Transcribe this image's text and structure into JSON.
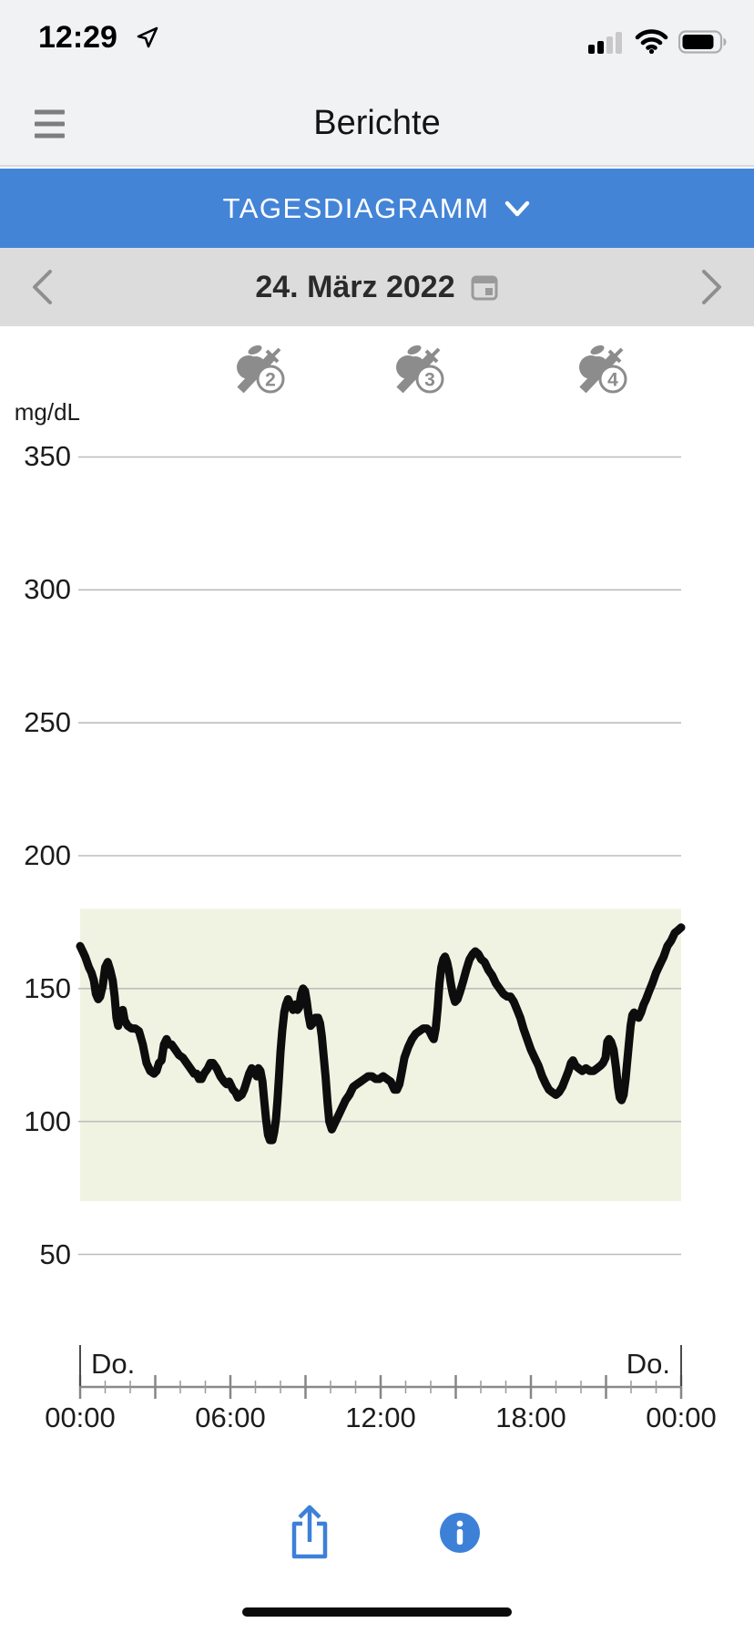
{
  "status_bar": {
    "time": "12:29",
    "signal_bars_filled": 2,
    "signal_bars_total": 4,
    "battery_fill": 0.78
  },
  "header": {
    "title": "Berichte"
  },
  "selector": {
    "label": "TAGESDIAGRAMM"
  },
  "date_bar": {
    "date": "24. März 2022"
  },
  "colors": {
    "accent_blue": "#4384d7",
    "action_blue": "#3d80d8",
    "icon_gray": "#8c8c8c",
    "band_green": "#f1f3e2",
    "curve_black": "#0d0d0d"
  },
  "chart_data": {
    "type": "line",
    "title": "",
    "xlabel": "",
    "ylabel": "mg/dL",
    "unit_label": "mg/dL",
    "grid": true,
    "ylim": [
      40,
      380
    ],
    "yticks": [
      350,
      300,
      250,
      200,
      150,
      100,
      50
    ],
    "xlim_hours": [
      0,
      24
    ],
    "major_tick_every_hours": 3,
    "minor_tick_every_hours": 1,
    "xticks": [
      {
        "hour": 0,
        "label": "00:00"
      },
      {
        "hour": 6,
        "label": "06:00"
      },
      {
        "hour": 12,
        "label": "12:00"
      },
      {
        "hour": 18,
        "label": "18:00"
      },
      {
        "hour": 24,
        "label": "00:00"
      }
    ],
    "day_labels": [
      {
        "hour": 0,
        "label": "Do.",
        "align": "left"
      },
      {
        "hour": 24,
        "label": "Do.",
        "align": "right"
      }
    ],
    "target_range": {
      "low": 70,
      "high": 180,
      "band_color": "#f1f3e2"
    },
    "events": [
      {
        "label": "2",
        "hour": 7.05
      },
      {
        "label": "3",
        "hour": 13.4
      },
      {
        "label": "4",
        "hour": 20.73
      }
    ],
    "series": [
      {
        "name": "glucose",
        "color": "#0d0d0d",
        "points": [
          [
            0,
            166
          ],
          [
            0.1,
            164
          ],
          [
            0.2,
            162
          ],
          [
            0.35,
            158
          ],
          [
            0.45,
            156
          ],
          [
            0.55,
            153
          ],
          [
            0.63,
            148
          ],
          [
            0.72,
            146
          ],
          [
            0.8,
            147
          ],
          [
            0.9,
            151
          ],
          [
            1.0,
            158
          ],
          [
            1.1,
            160
          ],
          [
            1.2,
            157
          ],
          [
            1.3,
            153
          ],
          [
            1.38,
            147
          ],
          [
            1.45,
            139
          ],
          [
            1.52,
            136
          ],
          [
            1.6,
            141
          ],
          [
            1.7,
            142
          ],
          [
            1.78,
            138
          ],
          [
            1.9,
            136
          ],
          [
            2.05,
            135
          ],
          [
            2.2,
            135
          ],
          [
            2.35,
            134
          ],
          [
            2.5,
            129
          ],
          [
            2.65,
            122
          ],
          [
            2.8,
            119
          ],
          [
            2.95,
            118
          ],
          [
            3.05,
            119
          ],
          [
            3.15,
            122
          ],
          [
            3.25,
            123
          ],
          [
            3.35,
            129
          ],
          [
            3.45,
            131
          ],
          [
            3.55,
            129
          ],
          [
            3.65,
            129
          ],
          [
            3.8,
            127
          ],
          [
            3.95,
            125
          ],
          [
            4.1,
            124
          ],
          [
            4.25,
            122
          ],
          [
            4.4,
            120
          ],
          [
            4.55,
            118
          ],
          [
            4.65,
            118
          ],
          [
            4.75,
            116
          ],
          [
            4.85,
            116
          ],
          [
            4.95,
            118
          ],
          [
            5.1,
            120
          ],
          [
            5.2,
            122
          ],
          [
            5.3,
            122
          ],
          [
            5.45,
            120
          ],
          [
            5.6,
            117
          ],
          [
            5.75,
            115
          ],
          [
            5.85,
            114
          ],
          [
            5.95,
            115
          ],
          [
            6.1,
            112
          ],
          [
            6.2,
            111
          ],
          [
            6.3,
            109
          ],
          [
            6.45,
            110
          ],
          [
            6.55,
            112
          ],
          [
            6.65,
            115
          ],
          [
            6.75,
            118
          ],
          [
            6.85,
            120
          ],
          [
            6.95,
            119
          ],
          [
            7.05,
            117
          ],
          [
            7.12,
            120
          ],
          [
            7.2,
            119
          ],
          [
            7.28,
            115
          ],
          [
            7.35,
            108
          ],
          [
            7.42,
            101
          ],
          [
            7.5,
            95
          ],
          [
            7.58,
            93
          ],
          [
            7.68,
            93
          ],
          [
            7.75,
            96
          ],
          [
            7.82,
            101
          ],
          [
            7.88,
            108
          ],
          [
            7.94,
            117
          ],
          [
            8.0,
            126
          ],
          [
            8.07,
            134
          ],
          [
            8.15,
            141
          ],
          [
            8.22,
            144
          ],
          [
            8.3,
            146
          ],
          [
            8.4,
            144
          ],
          [
            8.5,
            142
          ],
          [
            8.6,
            144
          ],
          [
            8.68,
            142
          ],
          [
            8.75,
            143
          ],
          [
            8.82,
            148
          ],
          [
            8.9,
            150
          ],
          [
            8.98,
            149
          ],
          [
            9.05,
            145
          ],
          [
            9.12,
            140
          ],
          [
            9.2,
            136
          ],
          [
            9.3,
            137
          ],
          [
            9.4,
            139
          ],
          [
            9.5,
            139
          ],
          [
            9.58,
            137
          ],
          [
            9.65,
            132
          ],
          [
            9.72,
            125
          ],
          [
            9.8,
            117
          ],
          [
            9.88,
            107
          ],
          [
            9.95,
            100
          ],
          [
            10.05,
            97
          ],
          [
            10.15,
            99
          ],
          [
            10.3,
            102
          ],
          [
            10.45,
            105
          ],
          [
            10.6,
            108
          ],
          [
            10.75,
            110
          ],
          [
            10.9,
            113
          ],
          [
            11.05,
            114
          ],
          [
            11.2,
            115
          ],
          [
            11.35,
            116
          ],
          [
            11.5,
            117
          ],
          [
            11.65,
            117
          ],
          [
            11.8,
            116
          ],
          [
            11.95,
            116
          ],
          [
            12.1,
            117
          ],
          [
            12.25,
            116
          ],
          [
            12.4,
            115
          ],
          [
            12.55,
            112
          ],
          [
            12.65,
            112
          ],
          [
            12.75,
            114
          ],
          [
            12.85,
            119
          ],
          [
            12.95,
            124
          ],
          [
            13.1,
            128
          ],
          [
            13.25,
            131
          ],
          [
            13.4,
            133
          ],
          [
            13.55,
            134
          ],
          [
            13.7,
            135
          ],
          [
            13.85,
            135
          ],
          [
            13.95,
            134
          ],
          [
            14.05,
            132
          ],
          [
            14.12,
            131
          ],
          [
            14.2,
            135
          ],
          [
            14.28,
            143
          ],
          [
            14.35,
            152
          ],
          [
            14.42,
            158
          ],
          [
            14.5,
            161
          ],
          [
            14.57,
            162
          ],
          [
            14.65,
            160
          ],
          [
            14.72,
            157
          ],
          [
            14.8,
            152
          ],
          [
            14.88,
            148
          ],
          [
            14.97,
            145
          ],
          [
            15.07,
            146
          ],
          [
            15.18,
            149
          ],
          [
            15.3,
            153
          ],
          [
            15.42,
            157
          ],
          [
            15.55,
            161
          ],
          [
            15.68,
            163
          ],
          [
            15.78,
            164
          ],
          [
            15.9,
            163
          ],
          [
            16.02,
            161
          ],
          [
            16.15,
            160
          ],
          [
            16.3,
            157
          ],
          [
            16.45,
            155
          ],
          [
            16.6,
            152
          ],
          [
            16.75,
            150
          ],
          [
            16.9,
            148
          ],
          [
            17.05,
            147
          ],
          [
            17.18,
            147
          ],
          [
            17.32,
            145
          ],
          [
            17.45,
            142
          ],
          [
            17.58,
            139
          ],
          [
            17.7,
            135
          ],
          [
            17.85,
            131
          ],
          [
            18.0,
            127
          ],
          [
            18.15,
            124
          ],
          [
            18.3,
            121
          ],
          [
            18.45,
            117
          ],
          [
            18.6,
            114
          ],
          [
            18.72,
            112
          ],
          [
            18.85,
            111
          ],
          [
            19.0,
            110
          ],
          [
            19.12,
            111
          ],
          [
            19.25,
            113
          ],
          [
            19.38,
            116
          ],
          [
            19.5,
            119
          ],
          [
            19.6,
            122
          ],
          [
            19.68,
            123
          ],
          [
            19.78,
            121
          ],
          [
            19.9,
            120
          ],
          [
            20.05,
            119
          ],
          [
            20.2,
            120
          ],
          [
            20.35,
            119
          ],
          [
            20.5,
            119
          ],
          [
            20.65,
            120
          ],
          [
            20.78,
            121
          ],
          [
            20.88,
            122
          ],
          [
            20.98,
            124
          ],
          [
            21.05,
            130
          ],
          [
            21.12,
            131
          ],
          [
            21.2,
            130
          ],
          [
            21.3,
            127
          ],
          [
            21.4,
            120
          ],
          [
            21.48,
            113
          ],
          [
            21.55,
            109
          ],
          [
            21.62,
            108
          ],
          [
            21.7,
            110
          ],
          [
            21.78,
            116
          ],
          [
            21.85,
            123
          ],
          [
            21.92,
            130
          ],
          [
            21.98,
            136
          ],
          [
            22.05,
            140
          ],
          [
            22.12,
            141
          ],
          [
            22.2,
            140
          ],
          [
            22.3,
            139
          ],
          [
            22.4,
            141
          ],
          [
            22.5,
            144
          ],
          [
            22.6,
            146
          ],
          [
            22.72,
            149
          ],
          [
            22.85,
            152
          ],
          [
            23.0,
            156
          ],
          [
            23.15,
            159
          ],
          [
            23.3,
            162
          ],
          [
            23.45,
            166
          ],
          [
            23.6,
            168
          ],
          [
            23.75,
            171
          ],
          [
            23.88,
            172
          ],
          [
            24.0,
            173
          ]
        ]
      }
    ]
  }
}
